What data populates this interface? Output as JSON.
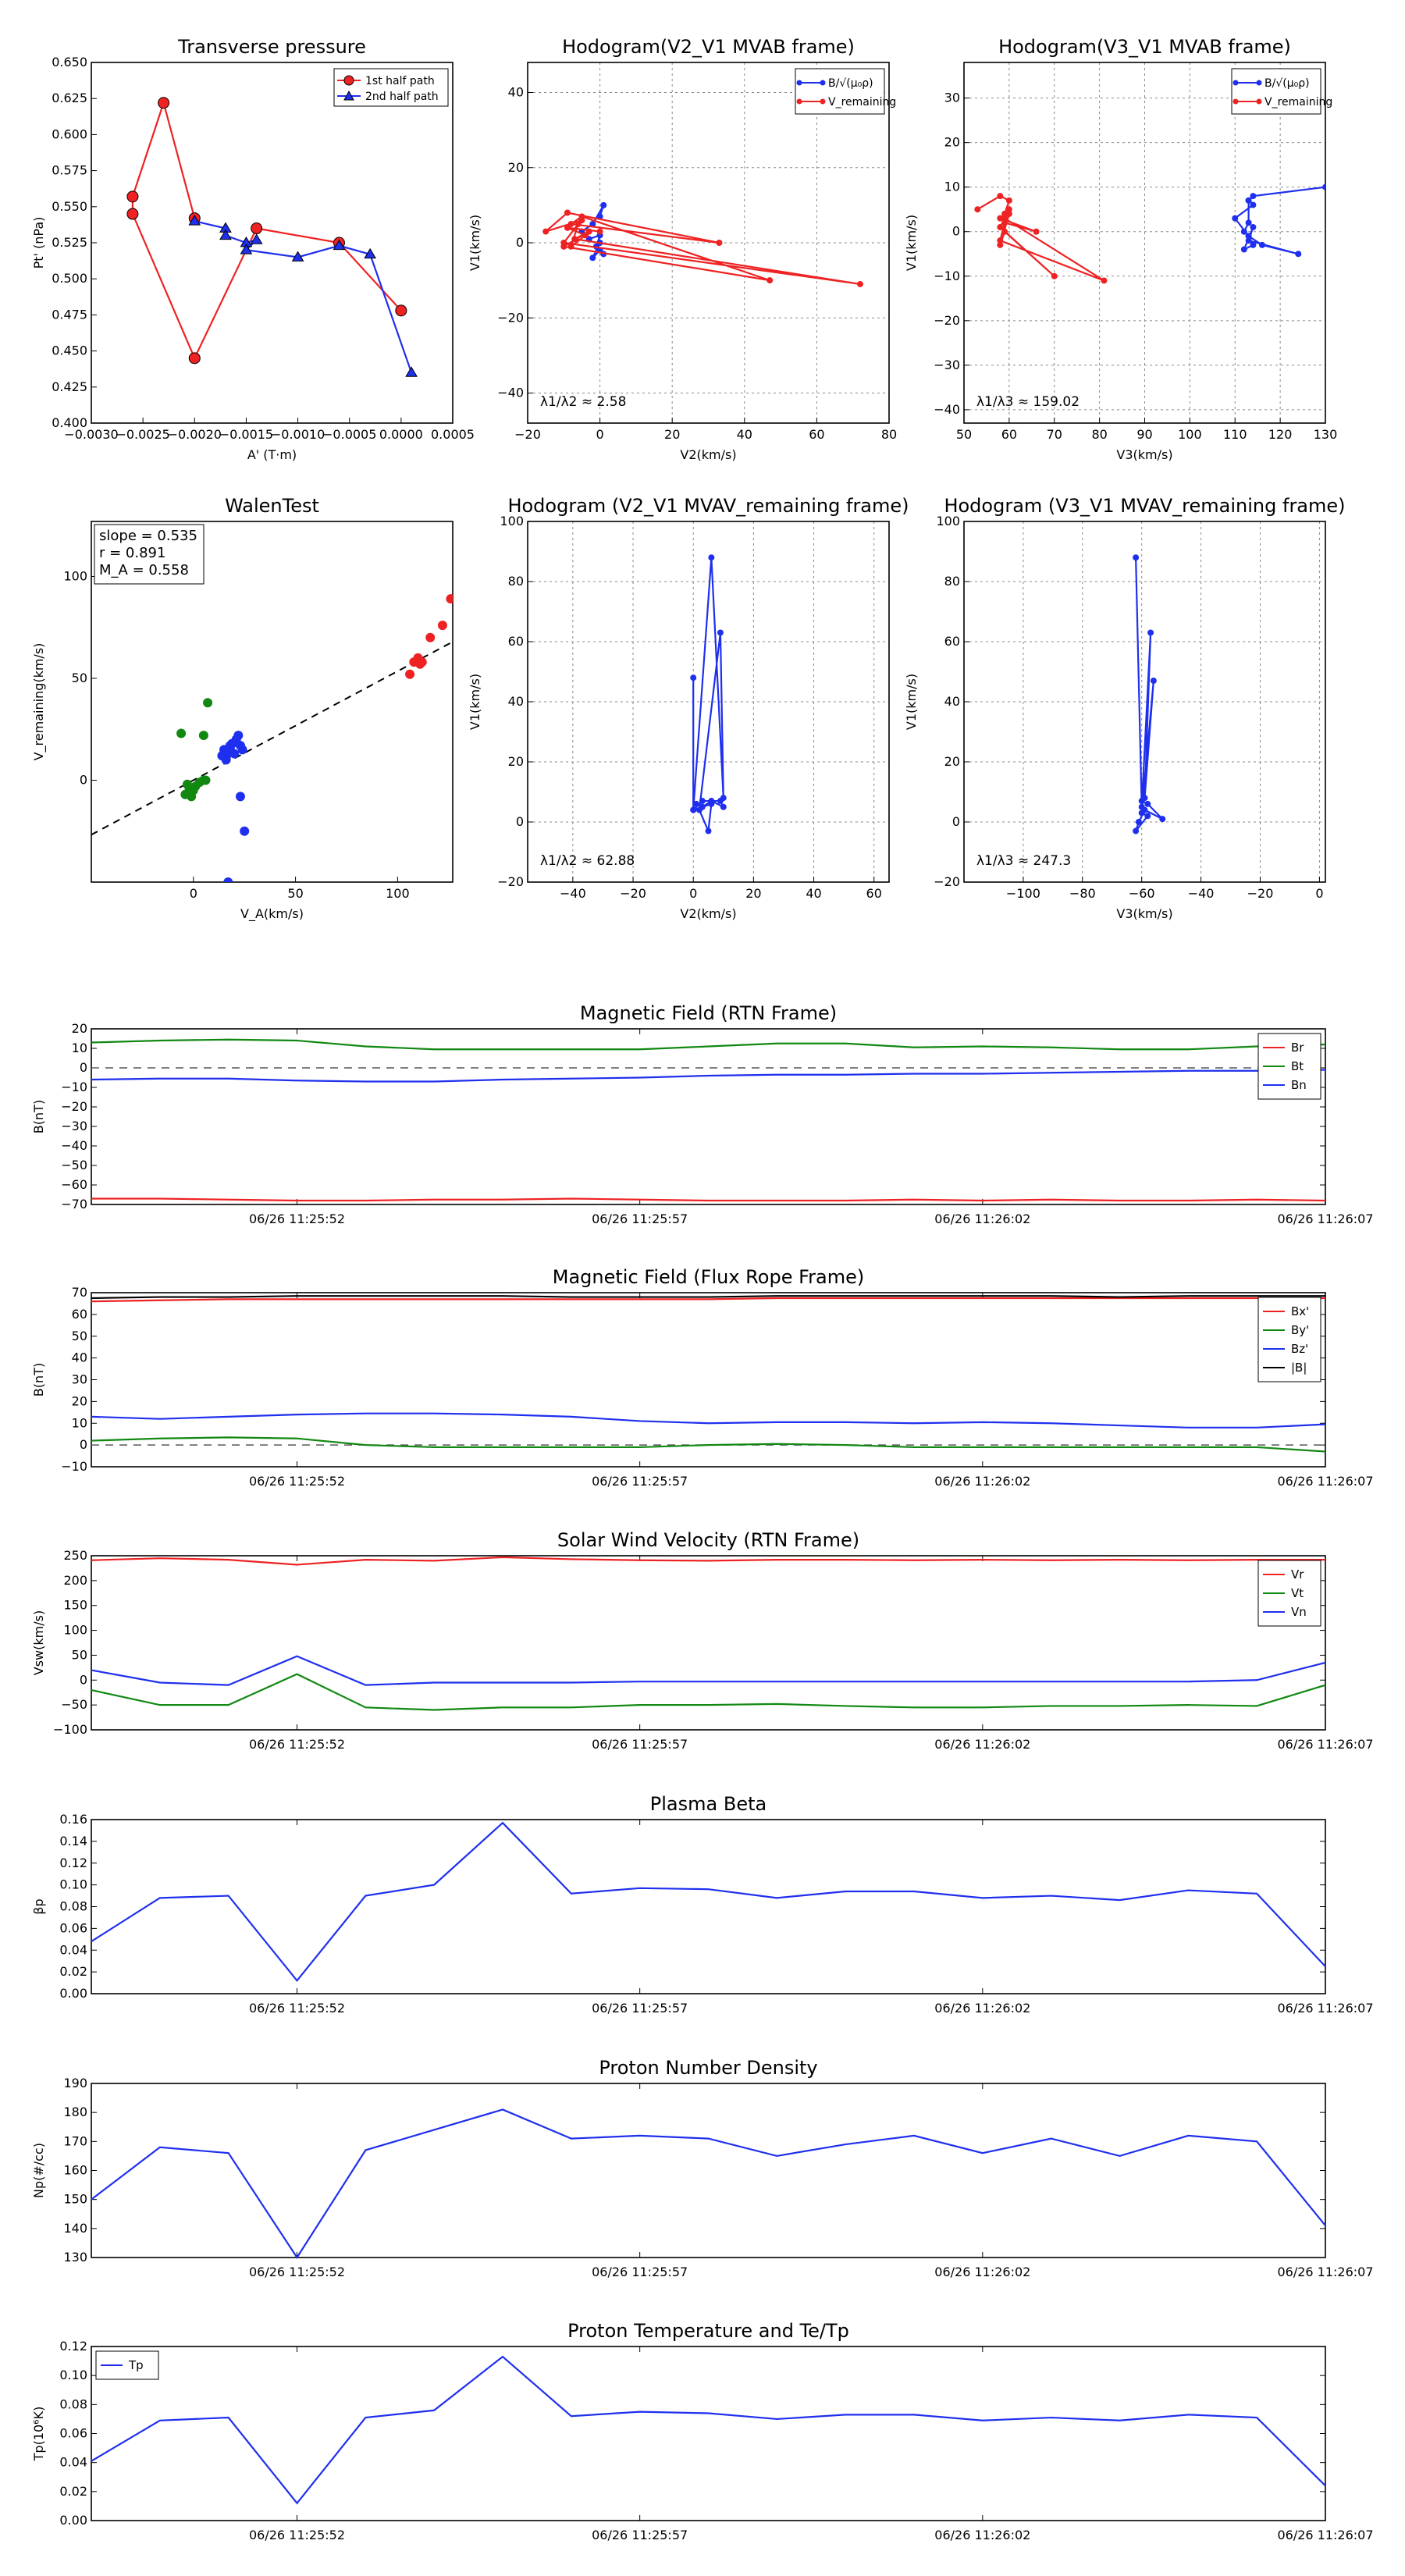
{
  "colors": {
    "red": "#ee2222",
    "green": "#118811",
    "blue": "#1f2fee",
    "black": "#000000"
  },
  "time_ticks": [
    "06/26 11:25:52",
    "06/26 11:25:57",
    "06/26 11:26:02",
    "06/26 11:26:07"
  ],
  "chart_data": [
    {
      "id": "tp",
      "type": "scatter-line",
      "title": "Transverse pressure",
      "xlabel": "A' (T·m)",
      "ylabel": "Pt' (nPa)",
      "xlim": [
        -0.003,
        0.0005
      ],
      "ylim": [
        0.4,
        0.65
      ],
      "xticks": [
        -0.003,
        -0.0025,
        -0.002,
        -0.0015,
        -0.001,
        -0.0005,
        0.0,
        0.0005
      ],
      "xticklabels": [
        "−0.0030",
        "−0.0025",
        "−0.0020",
        "−0.0015",
        "−0.0010",
        "−0.0005",
        "0.0000",
        "0.0005"
      ],
      "yticks": [
        0.4,
        0.425,
        0.45,
        0.475,
        0.5,
        0.525,
        0.55,
        0.575,
        0.6,
        0.625,
        0.65
      ],
      "yticklabels": [
        "0.400",
        "0.425",
        "0.450",
        "0.475",
        "0.500",
        "0.525",
        "0.550",
        "0.575",
        "0.600",
        "0.625",
        "0.650"
      ],
      "legend": [
        "1st half path",
        "2nd half path"
      ],
      "series": [
        {
          "name": "1st half path",
          "color": "red",
          "marker": "circle",
          "x": [
            0.0,
            -0.0006,
            -0.0014,
            -0.002,
            -0.0026,
            -0.0026,
            -0.0023,
            -0.002
          ],
          "y": [
            0.478,
            0.525,
            0.535,
            0.445,
            0.545,
            0.557,
            0.622,
            0.542
          ]
        },
        {
          "name": "2nd half path",
          "color": "blue",
          "marker": "triangle",
          "x": [
            -0.002,
            -0.0017,
            -0.0017,
            -0.0015,
            -0.0014,
            -0.0015,
            -0.001,
            -0.0006,
            -0.0003,
            0.0001
          ],
          "y": [
            0.54,
            0.535,
            0.53,
            0.525,
            0.527,
            0.52,
            0.515,
            0.523,
            0.517,
            0.435
          ]
        }
      ]
    },
    {
      "id": "hb2",
      "type": "line",
      "title": "Hodogram(V2_V1 MVAB frame)",
      "xlabel": "V2(km/s)",
      "ylabel": "V1(km/s)",
      "xlim": [
        -20,
        80
      ],
      "ylim": [
        -48,
        48
      ],
      "xticks": [
        -20,
        0,
        20,
        40,
        60,
        80
      ],
      "yticks": [
        -40,
        -20,
        0,
        20,
        40
      ],
      "legend": [
        "B/√(μ₀ρ)",
        "V_remaining"
      ],
      "annotation": "λ1/λ2 ≈ 2.58",
      "series": [
        {
          "name": "B",
          "color": "blue",
          "x": [
            0,
            1,
            -2,
            -5,
            -3,
            0,
            -1,
            1,
            0,
            -2,
            0
          ],
          "y": [
            7,
            10,
            5,
            3,
            1,
            2,
            -1,
            -3,
            -2,
            -4,
            0
          ]
        },
        {
          "name": "V",
          "color": "red",
          "x": [
            -5,
            -15,
            -9,
            33,
            -8,
            -5,
            47,
            -10,
            -3,
            -7,
            72,
            -10,
            -6,
            -8,
            -4,
            -9,
            0
          ],
          "y": [
            6,
            3,
            8,
            0,
            5,
            7,
            -10,
            -1,
            3,
            1,
            -11,
            0,
            5,
            -1,
            2,
            4,
            3
          ]
        }
      ]
    },
    {
      "id": "hb3",
      "type": "line",
      "title": "Hodogram(V3_V1 MVAB frame)",
      "xlabel": "V3(km/s)",
      "ylabel": "V1(km/s)",
      "xlim": [
        50,
        130
      ],
      "ylim": [
        -43,
        38
      ],
      "xticks": [
        50,
        60,
        70,
        80,
        90,
        100,
        110,
        120,
        130
      ],
      "yticks": [
        -40,
        -30,
        -20,
        -10,
        0,
        10,
        20,
        30
      ],
      "legend": [
        "B/√(μ₀ρ)",
        "V_remaining"
      ],
      "annotation": "λ1/λ3 ≈ 159.02",
      "series": [
        {
          "name": "B",
          "color": "blue",
          "x": [
            130,
            114,
            113,
            113,
            112,
            113,
            114,
            112,
            114,
            113,
            124,
            116,
            113,
            110,
            114,
            113
          ],
          "y": [
            10,
            8,
            7,
            2,
            0,
            -1,
            -3,
            -4,
            1,
            -2,
            -5,
            -3,
            -1,
            3,
            6,
            7
          ]
        },
        {
          "name": "V",
          "color": "red",
          "x": [
            53,
            58,
            60,
            59,
            58,
            66,
            59,
            58,
            81,
            59,
            60,
            58,
            70,
            59,
            58,
            60
          ],
          "y": [
            5,
            8,
            7,
            4,
            3,
            0,
            2,
            -2,
            -11,
            3,
            5,
            1,
            -10,
            0,
            -3,
            4
          ]
        }
      ]
    },
    {
      "id": "walen",
      "type": "scatter",
      "title": "WalenTest",
      "xlabel": "V_A(km/s)",
      "ylabel": "V_remaining(km/s)",
      "xlim": [
        -50,
        127
      ],
      "ylim": [
        -50,
        127
      ],
      "xticks": [
        0,
        50,
        100
      ],
      "yticks": [
        0,
        50,
        100
      ],
      "stats": [
        "slope = 0.535",
        "r = 0.891",
        "M_A = 0.558"
      ],
      "fit": {
        "slope": 0.535,
        "intercept": 0
      },
      "series": [
        {
          "name": "green",
          "color": "green",
          "x": [
            -3,
            -2,
            -2,
            -1,
            0,
            -4,
            1,
            3,
            5,
            6,
            -6,
            5,
            7
          ],
          "y": [
            -2,
            -4,
            -6,
            -8,
            -5,
            -7,
            -3,
            -1,
            0,
            0,
            23,
            22,
            38
          ]
        },
        {
          "name": "blue",
          "color": "blue",
          "x": [
            14,
            15,
            16,
            17,
            18,
            19,
            20,
            21,
            22,
            23,
            24,
            16,
            18,
            23,
            25,
            17
          ],
          "y": [
            12,
            15,
            10,
            14,
            16,
            18,
            13,
            20,
            22,
            17,
            15,
            11,
            17,
            -8,
            -25,
            -50
          ]
        },
        {
          "name": "red",
          "color": "red",
          "x": [
            106,
            108,
            110,
            111,
            112,
            116,
            122,
            126
          ],
          "y": [
            52,
            58,
            60,
            57,
            58,
            70,
            76,
            89
          ]
        }
      ]
    },
    {
      "id": "hv2",
      "type": "line",
      "title": "Hodogram (V2_V1 MVAV_remaining frame)",
      "xlabel": "V2(km/s)",
      "ylabel": "V1(km/s)",
      "xlim": [
        -55,
        65
      ],
      "ylim": [
        -20,
        100
      ],
      "xticks": [
        -40,
        -20,
        0,
        20,
        40,
        60
      ],
      "yticks": [
        -20,
        0,
        20,
        40,
        60,
        80,
        100
      ],
      "annotation": "λ1/λ2 ≈ 62.88",
      "series": [
        {
          "name": "B",
          "color": "blue",
          "x": [
            0,
            0,
            6,
            10,
            9,
            2,
            5,
            6,
            0,
            3,
            9,
            10,
            6,
            3,
            1
          ],
          "y": [
            48,
            4,
            88,
            8,
            63,
            4,
            -3,
            6,
            4,
            7,
            7,
            5,
            7,
            5,
            6
          ]
        }
      ]
    },
    {
      "id": "hv3",
      "type": "line",
      "title": "Hodogram (V3_V1 MVAV_remaining frame)",
      "xlabel": "V3(km/s)",
      "ylabel": "V1(km/s)",
      "xlim": [
        -120,
        2
      ],
      "ylim": [
        -20,
        100
      ],
      "xticks": [
        -100,
        -80,
        -60,
        -40,
        -20,
        0
      ],
      "yticks": [
        -20,
        0,
        20,
        40,
        60,
        80,
        100
      ],
      "annotation": "λ1/λ3 ≈ 247.3",
      "series": [
        {
          "name": "B",
          "color": "blue",
          "x": [
            -62,
            -60,
            -57,
            -59,
            -56,
            -60,
            -58,
            -62,
            -61,
            -59,
            -53,
            -58,
            -60
          ],
          "y": [
            88,
            5,
            63,
            8,
            47,
            3,
            2,
            -3,
            0,
            4,
            1,
            6,
            7
          ]
        }
      ]
    },
    {
      "id": "brtn",
      "type": "timeseries",
      "title": "Magnetic Field (RTN Frame)",
      "ylabel": "B(nT)",
      "ylim": [
        -70,
        20
      ],
      "yticks": [
        -70,
        -60,
        -50,
        -40,
        -30,
        -20,
        -10,
        0,
        10,
        20
      ],
      "dashed_zero": true,
      "legend": [
        "Br",
        "Bt",
        "Bn"
      ],
      "series": [
        {
          "name": "Br",
          "color": "red",
          "values": [
            -67,
            -67,
            -67.5,
            -68,
            -68,
            -67.5,
            -67.5,
            -67,
            -67.5,
            -68,
            -68,
            -68,
            -67.5,
            -68,
            -67.5,
            -68,
            -68,
            -67.5,
            -68
          ]
        },
        {
          "name": "Bt",
          "color": "green",
          "values": [
            13,
            14,
            14.5,
            14,
            11,
            9.5,
            9.5,
            9.5,
            9.5,
            11,
            12.5,
            12.5,
            10.5,
            11,
            10.5,
            9.5,
            9.5,
            11,
            12
          ]
        },
        {
          "name": "Bn",
          "color": "blue",
          "values": [
            -6,
            -5.5,
            -5.5,
            -6.5,
            -7,
            -7,
            -6,
            -5.5,
            -5,
            -4,
            -3.5,
            -3.5,
            -3,
            -3,
            -2.5,
            -2,
            -1.5,
            -1.5,
            -1
          ]
        }
      ]
    },
    {
      "id": "bfr",
      "type": "timeseries",
      "title": "Magnetic Field (Flux Rope Frame)",
      "ylabel": "B(nT)",
      "ylim": [
        -10,
        70
      ],
      "yticks": [
        -10,
        0,
        10,
        20,
        30,
        40,
        50,
        60,
        70
      ],
      "dashed_zero": true,
      "legend": [
        "Bx'",
        "By'",
        "Bz'",
        "|B|"
      ],
      "series": [
        {
          "name": "Bx'",
          "color": "red",
          "values": [
            66,
            66.5,
            67,
            67,
            67,
            67,
            67,
            67,
            67,
            67,
            67.5,
            67.5,
            67.5,
            67.5,
            67.5,
            67.5,
            67.5,
            67.5,
            67.5
          ]
        },
        {
          "name": "By'",
          "color": "green",
          "values": [
            2,
            3,
            3.5,
            3,
            0,
            -1,
            -1,
            -1,
            -1,
            0,
            0.5,
            0,
            -1,
            -1,
            -1,
            -1,
            -1,
            -1,
            -3
          ]
        },
        {
          "name": "Bz'",
          "color": "blue",
          "values": [
            13,
            12,
            13,
            14,
            14.5,
            14.5,
            14,
            13,
            11,
            10,
            10.5,
            10.5,
            10,
            10.5,
            10,
            9,
            8,
            8,
            9.5
          ]
        },
        {
          "name": "|B|",
          "color": "black",
          "values": [
            67.5,
            68,
            68,
            68.5,
            68.5,
            68.5,
            68.5,
            68,
            68,
            68,
            68.5,
            68.5,
            68.5,
            68.5,
            68.5,
            68,
            68.5,
            68.5,
            68.5
          ]
        }
      ]
    },
    {
      "id": "vsw",
      "type": "timeseries",
      "title": "Solar Wind Velocity (RTN Frame)",
      "ylabel": "Vsw(km/s)",
      "ylim": [
        -100,
        250
      ],
      "yticks": [
        -100,
        -50,
        0,
        50,
        100,
        150,
        200,
        250
      ],
      "legend": [
        "Vr",
        "Vt",
        "Vn"
      ],
      "series": [
        {
          "name": "Vr",
          "color": "red",
          "values": [
            241,
            245,
            242,
            232,
            242,
            240,
            247,
            243,
            241,
            240,
            242,
            242,
            241,
            242,
            241,
            242,
            241,
            242,
            242
          ]
        },
        {
          "name": "Vt",
          "color": "green",
          "values": [
            -20,
            -50,
            -50,
            12,
            -55,
            -60,
            -55,
            -55,
            -50,
            -50,
            -48,
            -52,
            -55,
            -55,
            -52,
            -52,
            -50,
            -52,
            -10
          ]
        },
        {
          "name": "Vn",
          "color": "blue",
          "values": [
            20,
            -5,
            -10,
            48,
            -10,
            -5,
            -5,
            -5,
            -3,
            -3,
            -3,
            -3,
            -3,
            -3,
            -3,
            -3,
            -3,
            0,
            35
          ]
        }
      ]
    },
    {
      "id": "beta",
      "type": "timeseries",
      "title": "Plasma Beta",
      "ylabel": "βp",
      "ylim": [
        0,
        0.16
      ],
      "yticks": [
        0,
        0.02,
        0.04,
        0.06,
        0.08,
        0.1,
        0.12,
        0.14,
        0.16
      ],
      "ytickfmt": 2,
      "series": [
        {
          "name": "beta",
          "color": "blue",
          "values": [
            0.048,
            0.088,
            0.09,
            0.012,
            0.09,
            0.1,
            0.157,
            0.092,
            0.097,
            0.096,
            0.088,
            0.094,
            0.094,
            0.088,
            0.09,
            0.086,
            0.095,
            0.092,
            0.025
          ]
        }
      ]
    },
    {
      "id": "np",
      "type": "timeseries",
      "title": "Proton Number Density",
      "ylabel": "Np(#/cc)",
      "ylim": [
        130,
        190
      ],
      "yticks": [
        130,
        140,
        150,
        160,
        170,
        180,
        190
      ],
      "series": [
        {
          "name": "Np",
          "color": "blue",
          "values": [
            150,
            168,
            166,
            130,
            167,
            174,
            181,
            171,
            172,
            171,
            165,
            169,
            172,
            166,
            171,
            165,
            172,
            170,
            141
          ]
        }
      ]
    },
    {
      "id": "tpr",
      "type": "timeseries",
      "title": "Proton Temperature and Te/Tp",
      "ylabel": "Tp(10⁶K)",
      "ylim": [
        0,
        0.12
      ],
      "yticks": [
        0,
        0.02,
        0.04,
        0.06,
        0.08,
        0.1,
        0.12
      ],
      "ytickfmt": 2,
      "legend": [
        "Tp"
      ],
      "legend_loc": "top-left",
      "series": [
        {
          "name": "Tp",
          "color": "blue",
          "values": [
            0.041,
            0.069,
            0.071,
            0.012,
            0.071,
            0.076,
            0.113,
            0.072,
            0.075,
            0.074,
            0.07,
            0.073,
            0.073,
            0.069,
            0.071,
            0.069,
            0.073,
            0.071,
            0.024
          ]
        }
      ]
    }
  ]
}
